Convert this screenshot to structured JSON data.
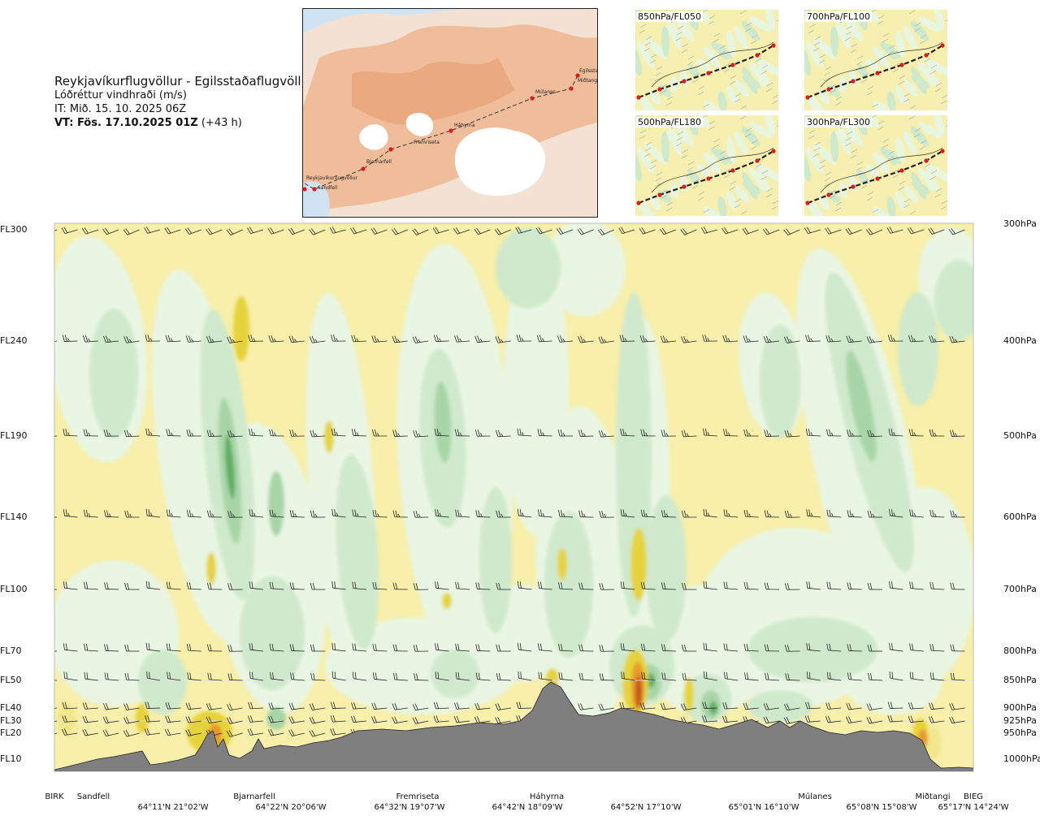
{
  "header": {
    "title": "Reykjavíkurflugvöllur - Egilsstaðaflugvöllur",
    "subtitle": "Lóðréttur vindhraði (m/s)",
    "it": "IT: Mið. 15. 10. 2025 06Z",
    "vt_bold": "VT: Fös. 17.10.2025 01Z",
    "vt_lead": "(+43 h)"
  },
  "map": {
    "route_points": [
      {
        "name": "Reykjavíkurflugvöllur"
      },
      {
        "name": "Sandfell"
      },
      {
        "name": "Bjarnarfell"
      },
      {
        "name": "Fremriseta"
      },
      {
        "name": "Háhyrna"
      },
      {
        "name": "Múlanes"
      },
      {
        "name": "Egilsstaðir"
      },
      {
        "name": "Miðtangi"
      }
    ]
  },
  "thumbnails": [
    {
      "label": "850hPa/FL050"
    },
    {
      "label": "700hPa/FL100"
    },
    {
      "label": "500hPa/FL180"
    },
    {
      "label": "300hPa/FL300"
    }
  ],
  "chart_data": {
    "type": "heatmap",
    "title": "Lóðréttur vindhraði (m/s)",
    "left_axis_labels": [
      "FL300",
      "FL240",
      "FL190",
      "FL140",
      "FL100",
      "FL70",
      "FL50",
      "FL40",
      "FL30",
      "FL20",
      "FL10"
    ],
    "right_axis_labels": [
      "300hPa",
      "400hPa",
      "500hPa",
      "600hPa",
      "700hPa",
      "800hPa",
      "850hPa",
      "900hPa",
      "925hPa",
      "950hPa",
      "1000hPa"
    ],
    "pressure_levels_hpa": [
      300,
      400,
      500,
      600,
      700,
      800,
      850,
      900,
      925,
      950,
      1000
    ],
    "places": [
      "BIRK",
      "Sandfell",
      "Bjarnarfell",
      "Fremriseta",
      "Háhyrna",
      "Múlanes",
      "Miðtangi",
      "BIEG"
    ],
    "coordinates": [
      "64°11'N 21°02'W",
      "64°22'N 20°06'W",
      "64°32'N 19°07'W",
      "64°42'N 18°09'W",
      "64°52'N 17°10'W",
      "65°01'N 16°10'W",
      "65°08'N 15°08'W",
      "65°17'N 14°24'W"
    ],
    "colors": {
      "background": "#f7efaa",
      "downdraft_weak": "#e9f6e3",
      "downdraft_mid": "#cfe9cc",
      "downdraft_strong": "#a8d5a8",
      "downdraft_max": "#5fae63",
      "updraft_weak": "#f2e78b",
      "updraft_mid": "#e6d33a",
      "updraft_strong": "#e79a2a",
      "updraft_max": "#c5561b",
      "terrain": "#7f7f7f"
    }
  }
}
